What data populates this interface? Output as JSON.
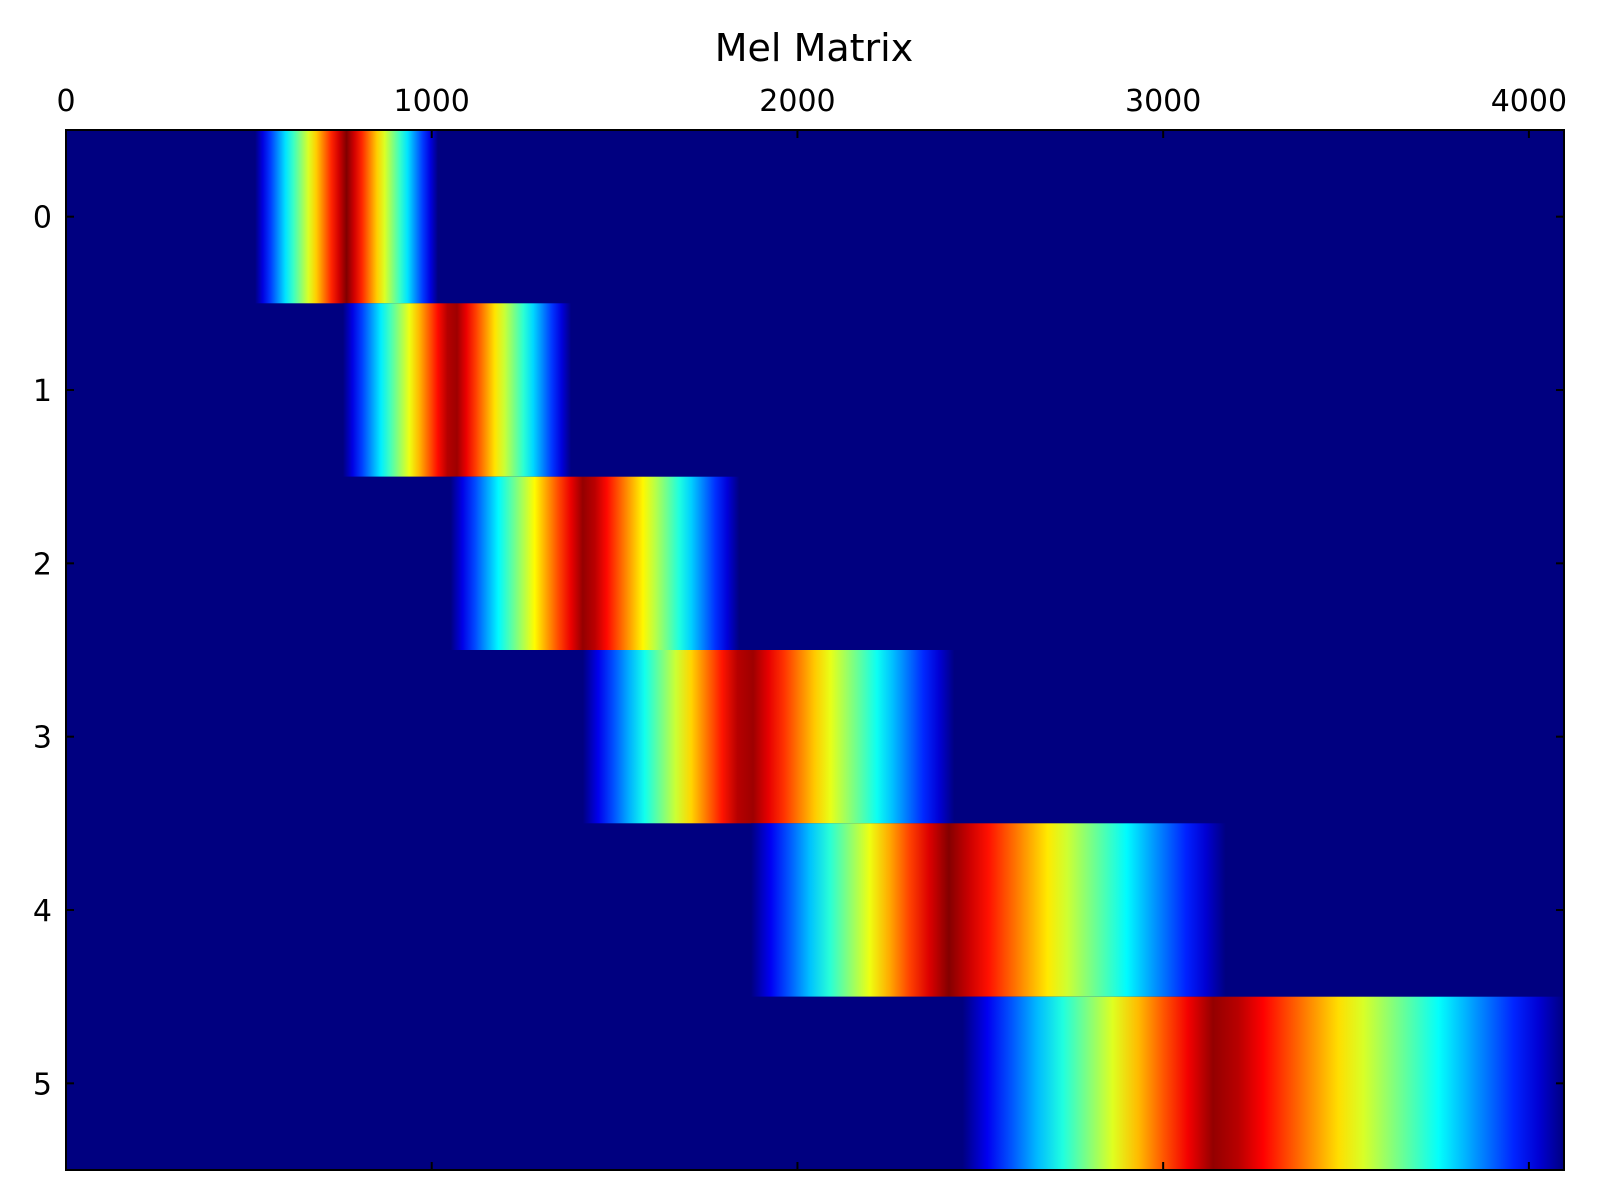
{
  "chart_data": {
    "type": "heatmap",
    "title": "Mel Matrix",
    "colormap": "jet",
    "colormap_stops": [
      "#000080",
      "#0000ff",
      "#00ffff",
      "#ffff00",
      "#ff0000",
      "#800000"
    ],
    "background_color": "#000080",
    "xlim": [
      0,
      4096
    ],
    "ylim": [
      -0.5,
      5.5
    ],
    "x_ticks": [
      0,
      1000,
      2000,
      3000,
      4000
    ],
    "x_tick_labels": [
      "0",
      "1000",
      "2000",
      "3000",
      "4000"
    ],
    "y_ticks": [
      0,
      1,
      2,
      3,
      4,
      5
    ],
    "y_tick_labels": [
      "0",
      "1",
      "2",
      "3",
      "4",
      "5"
    ],
    "x_axis_position": "top",
    "grid": false,
    "rows": [
      {
        "row": 0,
        "start": 517,
        "center": 767,
        "end": 1017
      },
      {
        "row": 1,
        "start": 757,
        "center": 1059,
        "end": 1381
      },
      {
        "row": 2,
        "start": 1051,
        "center": 1421,
        "end": 1841
      },
      {
        "row": 3,
        "start": 1413,
        "center": 1861,
        "end": 2429
      },
      {
        "row": 4,
        "start": 1873,
        "center": 2411,
        "end": 3171
      },
      {
        "row": 5,
        "start": 2451,
        "center": 3151,
        "end": 4096
      }
    ]
  }
}
